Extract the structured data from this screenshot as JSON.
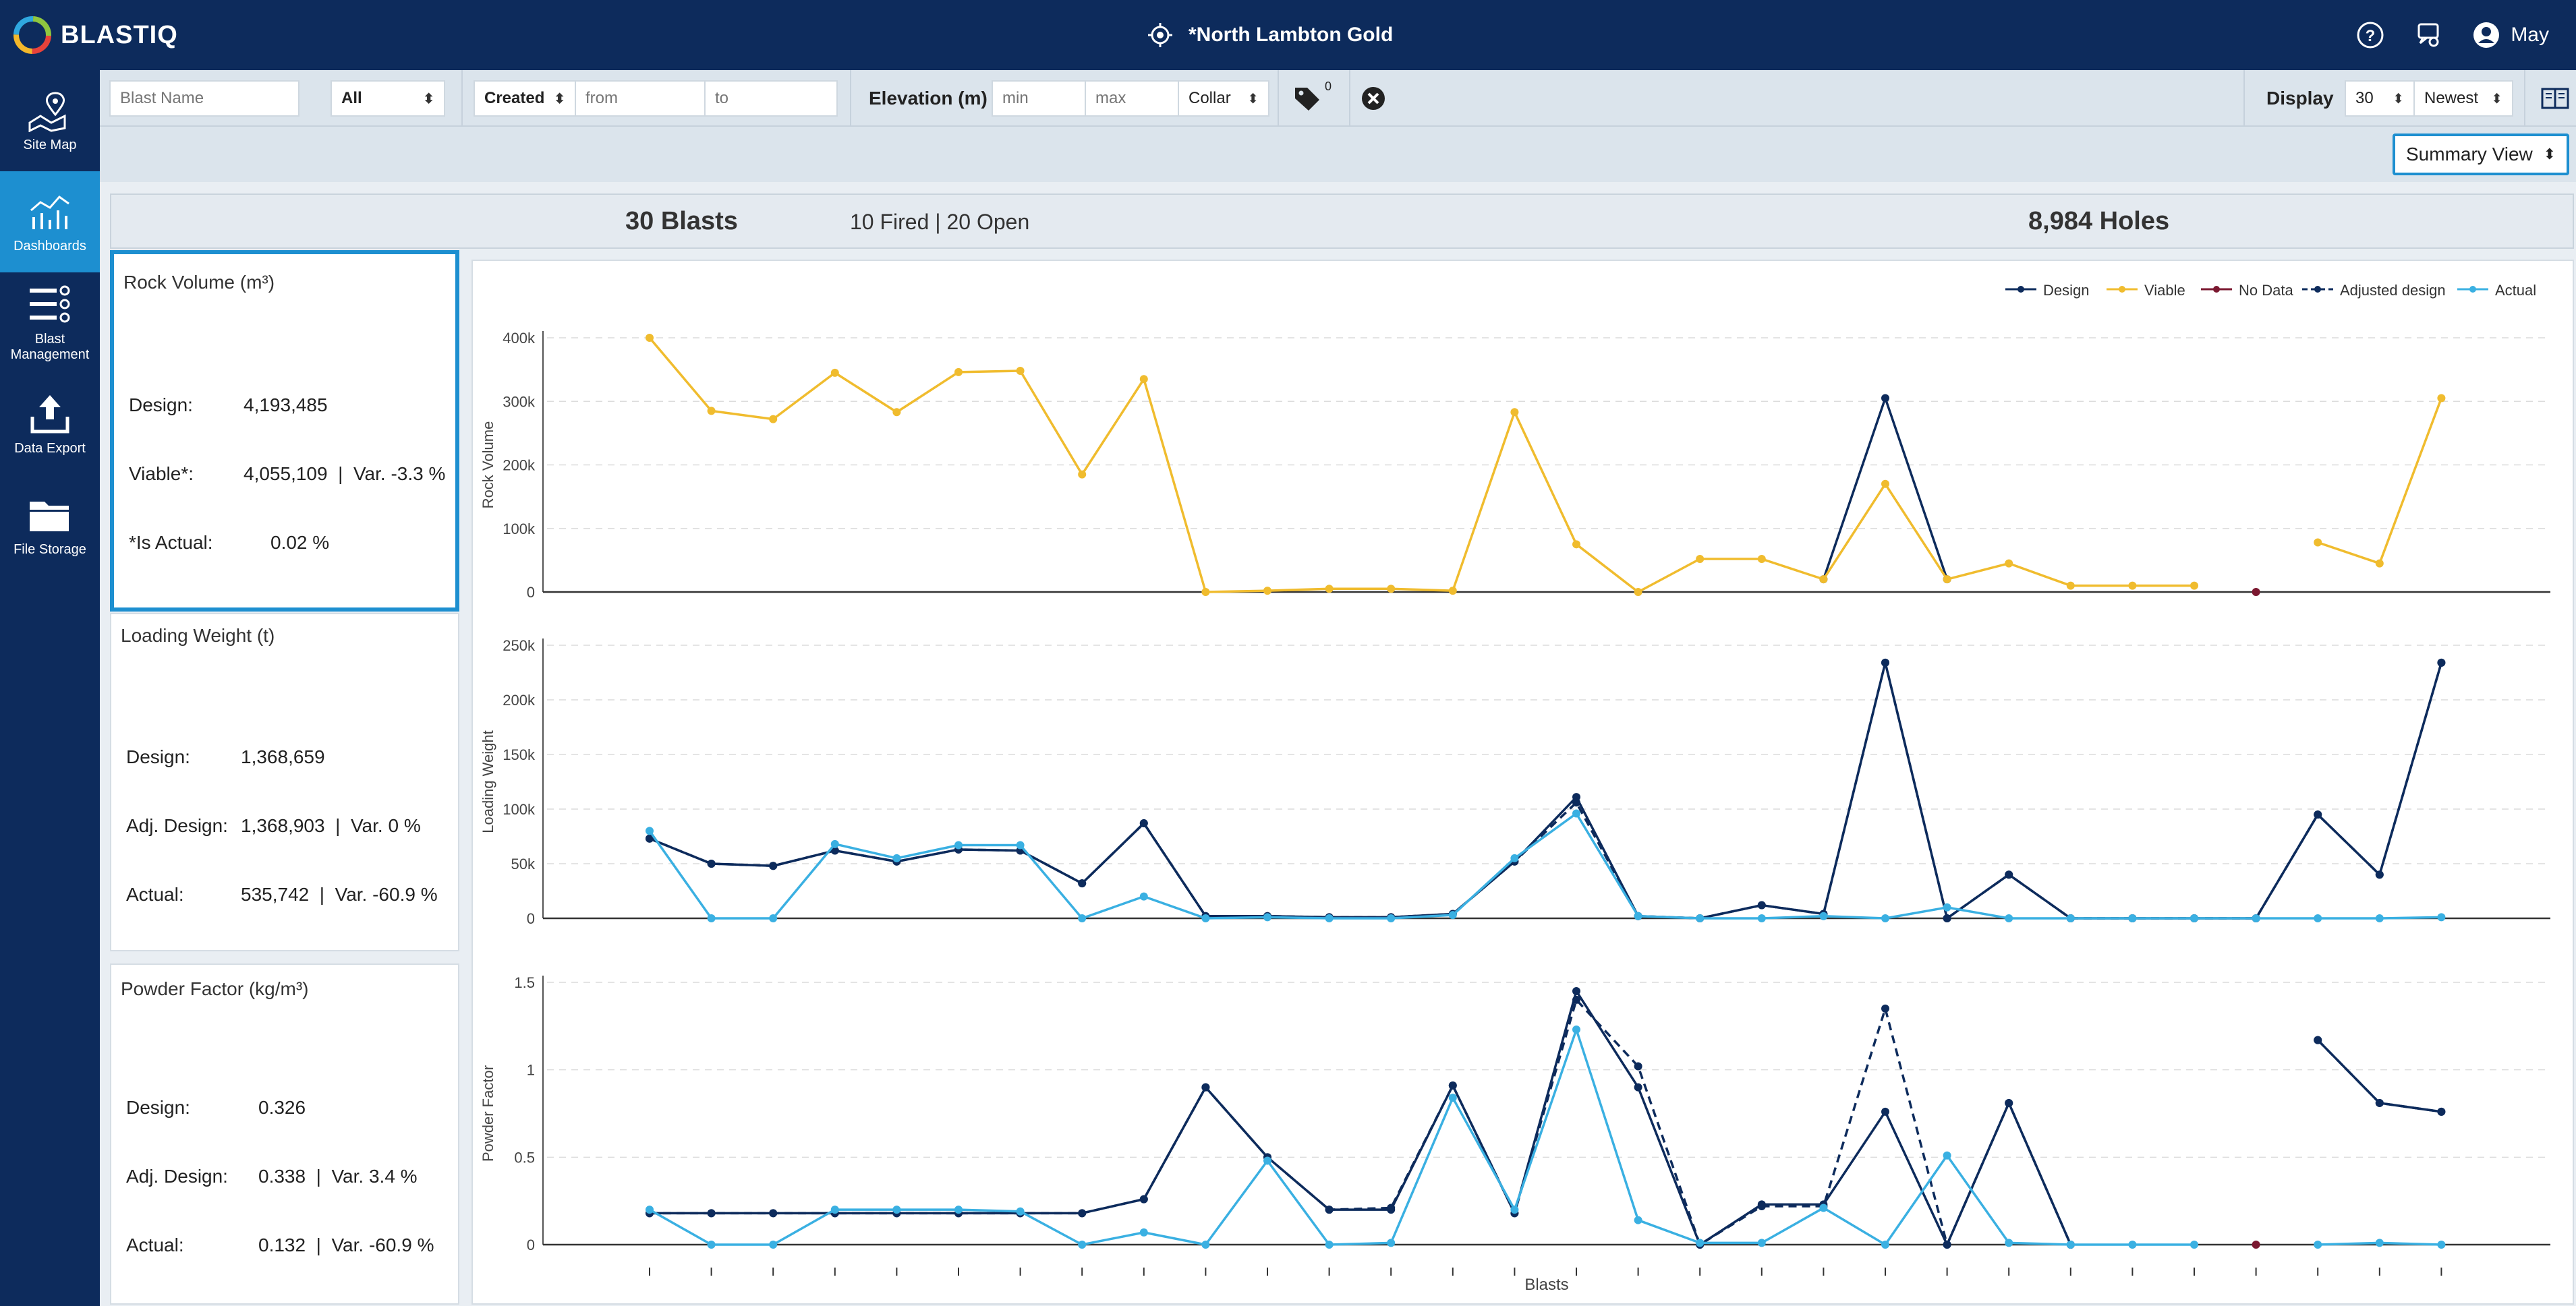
{
  "app": {
    "brand": "BLASTIQ",
    "site_name": "*North Lambton Gold",
    "user_name": "May"
  },
  "sidebar": {
    "items": [
      {
        "label": "Site Map",
        "icon": "map-icon",
        "active": false
      },
      {
        "label": "Dashboards",
        "icon": "dashboard-chart-icon",
        "active": true
      },
      {
        "label": "Blast Management",
        "icon": "blast-management-icon",
        "active": false
      },
      {
        "label": "Data Export",
        "icon": "upload-icon",
        "active": false
      },
      {
        "label": "File Storage",
        "icon": "folder-icon",
        "active": false
      }
    ]
  },
  "filters": {
    "blast_name_placeholder": "Blast Name",
    "status_value": "All",
    "date_type_value": "Created",
    "from_placeholder": "from",
    "to_placeholder": "to",
    "elevation_label": "Elevation (m)",
    "min_placeholder": "min",
    "max_placeholder": "max",
    "elevation_ref_value": "Collar",
    "tag_count": "0",
    "display_label": "Display",
    "display_count": "30",
    "sort_value": "Newest"
  },
  "view_select": {
    "value": "Summary View"
  },
  "summary": {
    "blasts": "30 Blasts",
    "breakdown": "10 Fired | 20 Open",
    "holes": "8,984 Holes"
  },
  "cards": {
    "rock_volume": {
      "title": "Rock Volume (m³)",
      "rows": [
        {
          "key": "Design:",
          "value": "4,193,485"
        },
        {
          "key": "Viable*:",
          "value": "4,055,109  |  Var. -3.3 %"
        },
        {
          "key": "*Is Actual:",
          "value": "0.02 %"
        }
      ]
    },
    "loading_weight": {
      "title": "Loading Weight (t)",
      "rows": [
        {
          "key": "Design:",
          "value": "1,368,659"
        },
        {
          "key": "Adj. Design:",
          "value": "1,368,903  |  Var. 0 %"
        },
        {
          "key": "Actual:",
          "value": "535,742  |  Var. -60.9 %"
        }
      ]
    },
    "powder_factor": {
      "title": "Powder Factor (kg/m³)",
      "rows": [
        {
          "key": "Design:",
          "value": "0.326"
        },
        {
          "key": "Adj. Design:",
          "value": "0.338  |  Var. 3.4 %"
        },
        {
          "key": "Actual:",
          "value": "0.132  |  Var. -60.9 %"
        }
      ]
    }
  },
  "chart_data": [
    {
      "type": "line",
      "ylabel": "Rock Volume",
      "xlabel": "",
      "ylim": [
        0,
        400000
      ],
      "yticks": [
        {
          "v": 0,
          "l": "0"
        },
        {
          "v": 100000,
          "l": "100k"
        },
        {
          "v": 200000,
          "l": "200k"
        },
        {
          "v": 300000,
          "l": "300k"
        },
        {
          "v": 400000,
          "l": "400k"
        }
      ],
      "x": [
        1,
        2,
        3,
        4,
        5,
        6,
        7,
        8,
        9,
        10,
        11,
        12,
        13,
        14,
        15,
        16,
        17,
        18,
        19,
        20,
        21,
        22,
        23,
        24,
        25,
        26,
        27,
        28,
        29,
        30
      ],
      "series": [
        {
          "name": "Design",
          "color": "#0d2b5c",
          "dashed": false,
          "values": [
            null,
            null,
            null,
            null,
            null,
            null,
            null,
            null,
            null,
            null,
            null,
            null,
            null,
            null,
            null,
            null,
            null,
            null,
            null,
            20000,
            305000,
            20000,
            null,
            null,
            null,
            null,
            null,
            null,
            null,
            null
          ]
        },
        {
          "name": "Viable",
          "color": "#f0bc2e",
          "dashed": false,
          "values": [
            400000,
            285000,
            272000,
            345000,
            283000,
            346000,
            348000,
            185000,
            335000,
            0,
            2000,
            5000,
            5000,
            2000,
            283000,
            75000,
            0,
            52000,
            52000,
            20000,
            170000,
            20000,
            45000,
            10000,
            10000,
            10000,
            null,
            78000,
            45000,
            305000
          ]
        },
        {
          "name": "No Data",
          "color": "#7b1830",
          "dashed": false,
          "values": [
            null,
            null,
            null,
            null,
            null,
            null,
            null,
            null,
            null,
            null,
            null,
            null,
            null,
            null,
            null,
            null,
            null,
            null,
            null,
            null,
            null,
            null,
            null,
            null,
            null,
            null,
            0,
            null,
            null,
            null
          ]
        }
      ]
    },
    {
      "type": "line",
      "ylabel": "Loading Weight",
      "xlabel": "",
      "ylim": [
        0,
        250000
      ],
      "yticks": [
        {
          "v": 0,
          "l": "0"
        },
        {
          "v": 50000,
          "l": "50k"
        },
        {
          "v": 100000,
          "l": "100k"
        },
        {
          "v": 150000,
          "l": "150k"
        },
        {
          "v": 200000,
          "l": "200k"
        },
        {
          "v": 250000,
          "l": "250k"
        }
      ],
      "x": [
        1,
        2,
        3,
        4,
        5,
        6,
        7,
        8,
        9,
        10,
        11,
        12,
        13,
        14,
        15,
        16,
        17,
        18,
        19,
        20,
        21,
        22,
        23,
        24,
        25,
        26,
        27,
        28,
        29,
        30
      ],
      "series": [
        {
          "name": "Design",
          "color": "#0d2b5c",
          "dashed": false,
          "values": [
            73000,
            50000,
            48000,
            62000,
            52000,
            63000,
            62000,
            32000,
            87000,
            2000,
            2000,
            1000,
            1000,
            4000,
            52000,
            111000,
            2000,
            0,
            12000,
            4000,
            234000,
            0,
            40000,
            0,
            0,
            0,
            0,
            95000,
            40000,
            234000
          ]
        },
        {
          "name": "Adjusted design",
          "color": "#0d2b5c",
          "dashed": true,
          "values": [
            73000,
            50000,
            48000,
            62000,
            52000,
            63000,
            62000,
            32000,
            87000,
            2000,
            2000,
            1000,
            1000,
            4000,
            52000,
            106000,
            2000,
            0,
            12000,
            4000,
            234000,
            0,
            40000,
            0,
            0,
            0,
            0,
            95000,
            40000,
            234000
          ]
        },
        {
          "name": "Actual",
          "color": "#3ab0e2",
          "dashed": false,
          "values": [
            80000,
            0,
            0,
            68000,
            55000,
            67000,
            67000,
            0,
            20000,
            0,
            1000,
            0,
            0,
            3000,
            55000,
            96000,
            2000,
            0,
            0,
            2000,
            0,
            10000,
            0,
            0,
            0,
            0,
            0,
            0,
            0,
            1000
          ]
        }
      ]
    },
    {
      "type": "line",
      "ylabel": "Powder Factor",
      "xlabel": "Blasts",
      "ylim": [
        0,
        1.5
      ],
      "yticks": [
        {
          "v": 0,
          "l": "0"
        },
        {
          "v": 0.5,
          "l": "0.5"
        },
        {
          "v": 1,
          "l": "1"
        },
        {
          "v": 1.5,
          "l": "1.5"
        }
      ],
      "x": [
        1,
        2,
        3,
        4,
        5,
        6,
        7,
        8,
        9,
        10,
        11,
        12,
        13,
        14,
        15,
        16,
        17,
        18,
        19,
        20,
        21,
        22,
        23,
        24,
        25,
        26,
        27,
        28,
        29,
        30
      ],
      "series": [
        {
          "name": "Design",
          "color": "#0d2b5c",
          "dashed": false,
          "values": [
            0.18,
            0.18,
            0.18,
            0.18,
            0.18,
            0.18,
            0.18,
            0.18,
            0.26,
            0.9,
            0.5,
            0.2,
            0.2,
            0.91,
            0.18,
            1.45,
            0.9,
            0,
            0.23,
            0.23,
            0.76,
            0,
            0.81,
            0,
            null,
            null,
            null,
            1.17,
            0.81,
            0.76
          ]
        },
        {
          "name": "Adjusted design",
          "color": "#0d2b5c",
          "dashed": true,
          "values": [
            0.18,
            0.18,
            0.18,
            0.18,
            0.18,
            0.18,
            0.18,
            0.18,
            0.26,
            0.9,
            0.5,
            0.2,
            0.21,
            0.91,
            0.18,
            1.4,
            1.02,
            0,
            0.22,
            0.22,
            1.35,
            0,
            0.81,
            0,
            null,
            null,
            null,
            1.17,
            0.81,
            0.76
          ]
        },
        {
          "name": "Actual",
          "color": "#3ab0e2",
          "dashed": false,
          "values": [
            0.2,
            0,
            0,
            0.2,
            0.2,
            0.2,
            0.19,
            0,
            0.07,
            0,
            0.48,
            0,
            0.01,
            0.84,
            0.2,
            1.23,
            0.14,
            0.01,
            0.01,
            0.21,
            0,
            0.51,
            0.01,
            0,
            0,
            0,
            null,
            0,
            0.01,
            0
          ]
        },
        {
          "name": "No Data",
          "color": "#7b1830",
          "dashed": false,
          "values": [
            null,
            null,
            null,
            null,
            null,
            null,
            null,
            null,
            null,
            null,
            null,
            null,
            null,
            null,
            null,
            null,
            null,
            null,
            null,
            null,
            null,
            null,
            null,
            null,
            null,
            null,
            0,
            null,
            null,
            null
          ]
        }
      ]
    }
  ],
  "legend": [
    {
      "name": "Design",
      "color": "#0d2b5c",
      "dashed": false
    },
    {
      "name": "Viable",
      "color": "#f0bc2e",
      "dashed": false
    },
    {
      "name": "No Data",
      "color": "#7b1830",
      "dashed": false
    },
    {
      "name": "Adjusted design",
      "color": "#0d2b5c",
      "dashed": true
    },
    {
      "name": "Actual",
      "color": "#3ab0e2",
      "dashed": false
    }
  ]
}
